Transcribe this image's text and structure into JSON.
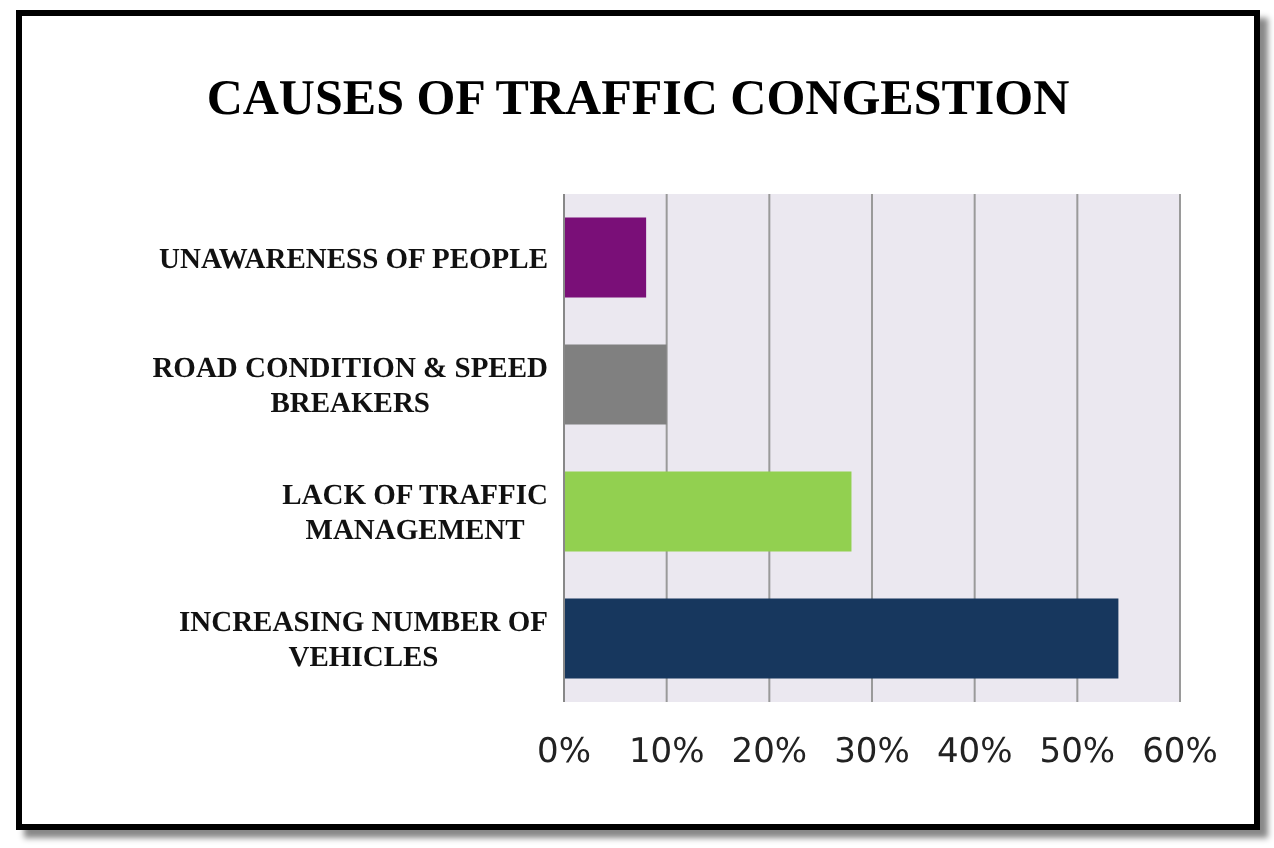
{
  "chart_data": {
    "type": "bar",
    "orientation": "horizontal",
    "title": "CAUSES OF TRAFFIC CONGESTION",
    "categories": [
      "UNAWARENESS OF PEOPLE",
      "ROAD CONDITION & SPEED BREAKERS",
      "LACK OF TRAFFIC MANAGEMENT",
      "INCREASING NUMBER OF VEHICLES"
    ],
    "values": [
      8,
      10,
      28,
      54
    ],
    "colors": [
      "#7a0f78",
      "#808080",
      "#92d050",
      "#17375e"
    ],
    "xlim": [
      0,
      60
    ],
    "xticks": [
      {
        "value": 0,
        "label": "0%"
      },
      {
        "value": 10,
        "label": "10%"
      },
      {
        "value": 20,
        "label": "20%"
      },
      {
        "value": 30,
        "label": "30%"
      },
      {
        "value": 40,
        "label": "40%"
      },
      {
        "value": 50,
        "label": "50%"
      },
      {
        "value": 60,
        "label": "60%"
      }
    ],
    "grid": "x"
  }
}
